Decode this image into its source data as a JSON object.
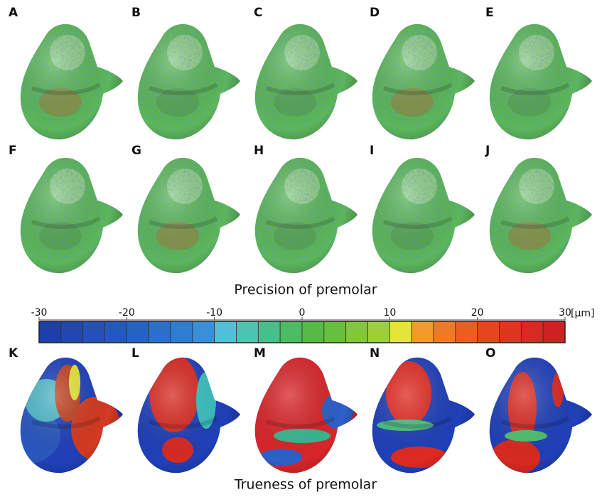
{
  "panels": [
    "A",
    "B",
    "C",
    "D",
    "E",
    "F",
    "G",
    "H",
    "I",
    "J",
    "K",
    "L",
    "M",
    "N",
    "O"
  ],
  "captions": {
    "precision": "Precision of premolar",
    "trueness": "Trueness of premolar"
  },
  "colorbar": {
    "lim": [
      -30,
      30
    ],
    "ticks": [
      -30,
      -20,
      -10,
      0,
      10,
      20,
      30
    ],
    "unit": "[µm]",
    "colors": [
      "#1f3fa8",
      "#2246b0",
      "#2450b8",
      "#2358bf",
      "#2462c6",
      "#2a6fcc",
      "#2f7dd2",
      "#3a8fd8",
      "#4fc0d8",
      "#4cc4b0",
      "#45c08a",
      "#4cbc62",
      "#55bb45",
      "#66c03d",
      "#80c838",
      "#9ccf38",
      "#e4e43a",
      "#f29a2c",
      "#f07a24",
      "#ea5e22",
      "#e4471f",
      "#de3520",
      "#d62a22",
      "#cc2222"
    ]
  }
}
